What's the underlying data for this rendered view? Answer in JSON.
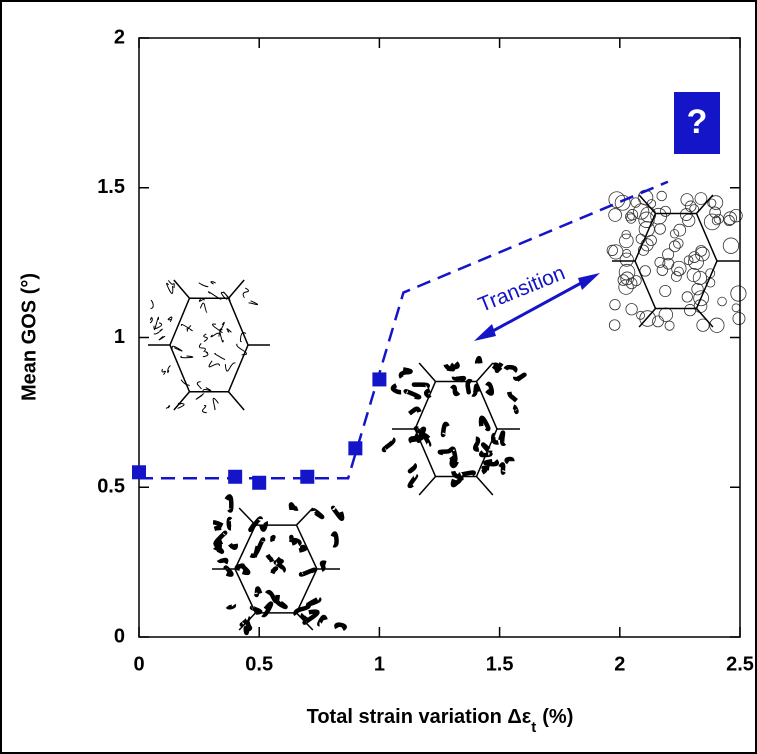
{
  "chart_data": {
    "type": "scatter",
    "x_label_parts": [
      "Total strain variation Δε",
      "t",
      "(%)"
    ],
    "y_label": "Mean GOS (°)",
    "xlim": [
      0,
      2.5
    ],
    "xticks": [
      0,
      0.5,
      1,
      1.5,
      2,
      2.5
    ],
    "ylim": [
      0,
      2
    ],
    "yticks": [
      0,
      0.5,
      1,
      1.5,
      2
    ],
    "color": "#1414c8",
    "points": {
      "x": [
        0,
        0.4,
        0.5,
        0.7,
        0.9,
        1.0
      ],
      "y": [
        0.55,
        0.535,
        0.515,
        0.535,
        0.63,
        0.86
      ]
    },
    "fit_line": {
      "x": [
        0,
        0.87,
        1.1,
        2.2
      ],
      "y": [
        0.53,
        0.53,
        1.15,
        1.52
      ]
    },
    "annotations": [
      "Transition",
      "?"
    ]
  }
}
